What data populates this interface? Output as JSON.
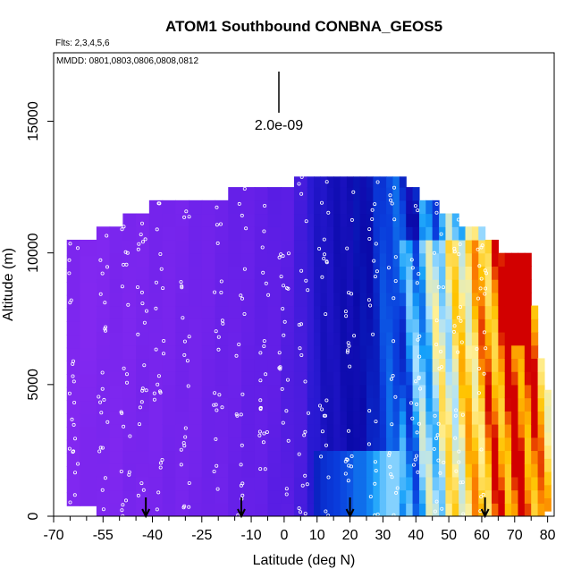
{
  "chart_data": {
    "type": "heatmap",
    "title": "ATOM1 Southbound CONBNA_GEOS5",
    "flights_note": "Flts: 2,3,4,5,6",
    "dates_note": "MMDD: 0801,0803,0806,0808,0812",
    "xlabel": "Latitude (deg N)",
    "ylabel": "Altitude (m)",
    "xlim": [
      -70,
      82
    ],
    "ylim": [
      0,
      17600
    ],
    "x_ticks": [
      -70,
      -55,
      -40,
      -25,
      -10,
      0,
      10,
      20,
      30,
      40,
      50,
      60,
      70,
      80
    ],
    "x_minor_ticks": [
      -65,
      -60,
      -50,
      -45,
      -35,
      -30,
      -20,
      -15,
      -5,
      5,
      15,
      25,
      35,
      45,
      55,
      65,
      75
    ],
    "y_ticks": [
      0,
      5000,
      10000,
      15000
    ],
    "scale_label": "2.0e-09",
    "arrow_latitudes": [
      -42,
      -13,
      20,
      61
    ],
    "colors": {
      "low": "#8228f0",
      "mid": "#2a1fd8",
      "deep": "#0a0aa8",
      "high": "#ffbf00",
      "peak": "#d20000"
    },
    "profile": {
      "lat_edges": [
        -66,
        -62,
        -57,
        -53,
        -49,
        -45,
        -41,
        -37,
        -33,
        -29,
        -25,
        -21,
        -17,
        -13,
        -9,
        -5,
        -1,
        3,
        7,
        9,
        11,
        13,
        15,
        17,
        19,
        21,
        23,
        25,
        27,
        29,
        31,
        33,
        35,
        37,
        39,
        41,
        43,
        45,
        47,
        49,
        51,
        53,
        55,
        57,
        59,
        61,
        63,
        65,
        67,
        69,
        71,
        73,
        75,
        77,
        79,
        81
      ],
      "top_altitudes": [
        10500,
        10500,
        11000,
        11000,
        11500,
        11500,
        12000,
        12000,
        12000,
        12000,
        12000,
        12000,
        12500,
        12500,
        12500,
        12500,
        12500,
        12900,
        12900,
        12900,
        12900,
        12900,
        12900,
        12900,
        12900,
        12900,
        12900,
        12900,
        12900,
        12900,
        12900,
        12900,
        12900,
        12500,
        12500,
        12000,
        12000,
        12000,
        11500,
        11500,
        11500,
        11000,
        11000,
        11000,
        11000,
        10500,
        10500,
        10000,
        10000,
        10000,
        10000,
        10000,
        8000,
        6000,
        4800
      ],
      "bottom_altitudes": [
        400,
        400,
        0,
        0,
        0,
        0,
        0,
        0,
        0,
        0,
        0,
        0,
        0,
        0,
        0,
        0,
        0,
        0,
        0,
        0,
        0,
        0,
        0,
        0,
        0,
        0,
        0,
        0,
        0,
        0,
        0,
        0,
        0,
        0,
        0,
        0,
        0,
        0,
        0,
        0,
        0,
        0,
        0,
        0,
        0,
        0,
        0,
        0,
        0,
        0,
        0,
        0,
        0,
        0,
        200
      ],
      "intensity": [
        0.02,
        0.02,
        0.03,
        0.04,
        0.05,
        0.06,
        0.07,
        0.08,
        0.09,
        0.1,
        0.12,
        0.14,
        0.16,
        0.18,
        0.2,
        0.22,
        0.25,
        0.3,
        0.38,
        0.42,
        0.44,
        0.45,
        0.46,
        0.47,
        0.48,
        0.5,
        0.5,
        0.52,
        0.55,
        0.58,
        0.6,
        0.6,
        0.62,
        0.64,
        0.66,
        0.7,
        0.72,
        0.75,
        0.78,
        0.8,
        0.82,
        0.84,
        0.86,
        0.88,
        0.9,
        0.92,
        0.94,
        0.95,
        0.96,
        0.97,
        0.98,
        0.97,
        0.95,
        0.9,
        0.88
      ]
    }
  }
}
